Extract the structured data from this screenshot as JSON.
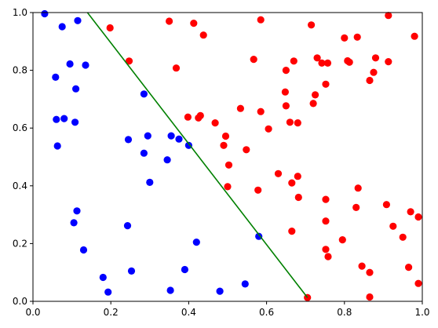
{
  "chart_data": {
    "type": "scatter",
    "title": "",
    "xlabel": "",
    "ylabel": "",
    "xlim": [
      0,
      1
    ],
    "ylim": [
      0,
      1
    ],
    "grid": false,
    "xticks": [
      "0.0",
      "0.2",
      "0.4",
      "0.6",
      "0.8",
      "1.0"
    ],
    "yticks": [
      "0.0",
      "0.2",
      "0.4",
      "0.6",
      "0.8",
      "1.0"
    ],
    "series": [
      {
        "color": "#0000ff",
        "points": [
          [
            0.03,
            0.996
          ],
          [
            0.075,
            0.951
          ],
          [
            0.115,
            0.972
          ],
          [
            0.095,
            0.822
          ],
          [
            0.135,
            0.818
          ],
          [
            0.058,
            0.776
          ],
          [
            0.11,
            0.736
          ],
          [
            0.285,
            0.718
          ],
          [
            0.06,
            0.63
          ],
          [
            0.08,
            0.633
          ],
          [
            0.108,
            0.62
          ],
          [
            0.063,
            0.538
          ],
          [
            0.245,
            0.56
          ],
          [
            0.295,
            0.573
          ],
          [
            0.355,
            0.573
          ],
          [
            0.375,
            0.562
          ],
          [
            0.4,
            0.54
          ],
          [
            0.285,
            0.513
          ],
          [
            0.345,
            0.49
          ],
          [
            0.3,
            0.412
          ],
          [
            0.113,
            0.313
          ],
          [
            0.105,
            0.272
          ],
          [
            0.243,
            0.262
          ],
          [
            0.13,
            0.178
          ],
          [
            0.42,
            0.205
          ],
          [
            0.58,
            0.225
          ],
          [
            0.39,
            0.11
          ],
          [
            0.253,
            0.105
          ],
          [
            0.18,
            0.083
          ],
          [
            0.193,
            0.032
          ],
          [
            0.353,
            0.038
          ],
          [
            0.48,
            0.035
          ],
          [
            0.545,
            0.06
          ]
        ]
      },
      {
        "color": "#ff0000",
        "points": [
          [
            0.198,
            0.947
          ],
          [
            0.35,
            0.97
          ],
          [
            0.413,
            0.963
          ],
          [
            0.438,
            0.922
          ],
          [
            0.585,
            0.975
          ],
          [
            0.715,
            0.957
          ],
          [
            0.913,
            0.99
          ],
          [
            0.98,
            0.918
          ],
          [
            0.8,
            0.912
          ],
          [
            0.833,
            0.915
          ],
          [
            0.247,
            0.832
          ],
          [
            0.368,
            0.808
          ],
          [
            0.567,
            0.838
          ],
          [
            0.65,
            0.8
          ],
          [
            0.67,
            0.832
          ],
          [
            0.73,
            0.843
          ],
          [
            0.742,
            0.825
          ],
          [
            0.757,
            0.825
          ],
          [
            0.808,
            0.833
          ],
          [
            0.813,
            0.828
          ],
          [
            0.88,
            0.843
          ],
          [
            0.875,
            0.793
          ],
          [
            0.913,
            0.83
          ],
          [
            0.865,
            0.765
          ],
          [
            0.752,
            0.752
          ],
          [
            0.648,
            0.725
          ],
          [
            0.725,
            0.715
          ],
          [
            0.72,
            0.685
          ],
          [
            0.65,
            0.677
          ],
          [
            0.533,
            0.668
          ],
          [
            0.585,
            0.657
          ],
          [
            0.398,
            0.638
          ],
          [
            0.425,
            0.635
          ],
          [
            0.43,
            0.643
          ],
          [
            0.468,
            0.618
          ],
          [
            0.66,
            0.62
          ],
          [
            0.68,
            0.618
          ],
          [
            0.605,
            0.597
          ],
          [
            0.495,
            0.572
          ],
          [
            0.49,
            0.54
          ],
          [
            0.548,
            0.525
          ],
          [
            0.503,
            0.472
          ],
          [
            0.63,
            0.442
          ],
          [
            0.68,
            0.433
          ],
          [
            0.665,
            0.41
          ],
          [
            0.5,
            0.397
          ],
          [
            0.578,
            0.385
          ],
          [
            0.682,
            0.36
          ],
          [
            0.752,
            0.353
          ],
          [
            0.835,
            0.392
          ],
          [
            0.908,
            0.335
          ],
          [
            0.83,
            0.325
          ],
          [
            0.97,
            0.31
          ],
          [
            0.99,
            0.292
          ],
          [
            0.752,
            0.278
          ],
          [
            0.925,
            0.26
          ],
          [
            0.95,
            0.222
          ],
          [
            0.795,
            0.213
          ],
          [
            0.665,
            0.243
          ],
          [
            0.752,
            0.18
          ],
          [
            0.758,
            0.155
          ],
          [
            0.845,
            0.122
          ],
          [
            0.965,
            0.118
          ],
          [
            0.865,
            0.1
          ],
          [
            0.99,
            0.062
          ],
          [
            0.705,
            0.013
          ],
          [
            0.865,
            0.015
          ]
        ]
      }
    ],
    "lines": [
      {
        "color": "#008000",
        "x": [
          0.14,
          0.705
        ],
        "y": [
          1.0,
          0.013
        ]
      }
    ]
  }
}
